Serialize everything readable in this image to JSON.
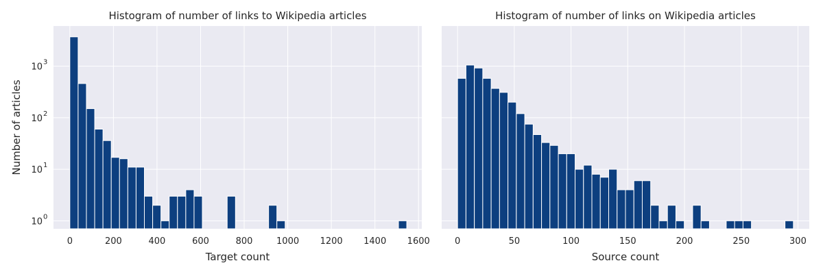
{
  "chart_data": [
    {
      "type": "bar",
      "title": "Histogram of number of links to Wikipedia articles",
      "xlabel": "Target count",
      "ylabel": "Number of articles",
      "yscale": "log",
      "grid": true,
      "xlim": [
        -75,
        1615
      ],
      "ylim": [
        0.7,
        6000
      ],
      "xticks": [
        0,
        200,
        400,
        600,
        800,
        1000,
        1200,
        1400,
        1600
      ],
      "yticks": [
        {
          "exp": "0",
          "value": 1
        },
        {
          "exp": "1",
          "value": 10
        },
        {
          "exp": "2",
          "value": 100
        },
        {
          "exp": "3",
          "value": 1000
        }
      ],
      "bin_width": 38,
      "bins": [
        {
          "x": 0,
          "value": 3700
        },
        {
          "x": 38,
          "value": 460
        },
        {
          "x": 76,
          "value": 150
        },
        {
          "x": 114,
          "value": 60
        },
        {
          "x": 152,
          "value": 36
        },
        {
          "x": 190,
          "value": 17
        },
        {
          "x": 228,
          "value": 16
        },
        {
          "x": 266,
          "value": 11
        },
        {
          "x": 304,
          "value": 11
        },
        {
          "x": 342,
          "value": 3
        },
        {
          "x": 380,
          "value": 2
        },
        {
          "x": 418,
          "value": 1
        },
        {
          "x": 456,
          "value": 3
        },
        {
          "x": 494,
          "value": 3
        },
        {
          "x": 532,
          "value": 4
        },
        {
          "x": 570,
          "value": 3
        },
        {
          "x": 722,
          "value": 3
        },
        {
          "x": 912,
          "value": 2
        },
        {
          "x": 950,
          "value": 1
        },
        {
          "x": 1508,
          "value": 1
        }
      ]
    },
    {
      "type": "bar",
      "title": "Histogram of number of links on Wikipedia articles",
      "xlabel": "Source count",
      "ylabel": "",
      "yscale": "log",
      "grid": true,
      "xlim": [
        -14,
        310
      ],
      "ylim": [
        0.7,
        6000
      ],
      "xticks": [
        0,
        50,
        100,
        150,
        200,
        250,
        300
      ],
      "bin_width": 7.4,
      "bins": [
        {
          "x": 0,
          "value": 580
        },
        {
          "x": 7.4,
          "value": 1050
        },
        {
          "x": 14.8,
          "value": 920
        },
        {
          "x": 22.2,
          "value": 580
        },
        {
          "x": 29.6,
          "value": 370
        },
        {
          "x": 37,
          "value": 310
        },
        {
          "x": 44.4,
          "value": 200
        },
        {
          "x": 51.8,
          "value": 120
        },
        {
          "x": 59.2,
          "value": 75
        },
        {
          "x": 66.6,
          "value": 47
        },
        {
          "x": 74,
          "value": 33
        },
        {
          "x": 81.4,
          "value": 29
        },
        {
          "x": 88.8,
          "value": 20
        },
        {
          "x": 96.2,
          "value": 20
        },
        {
          "x": 103.6,
          "value": 10
        },
        {
          "x": 111,
          "value": 12
        },
        {
          "x": 118.4,
          "value": 8
        },
        {
          "x": 125.8,
          "value": 7
        },
        {
          "x": 133.2,
          "value": 10
        },
        {
          "x": 140.6,
          "value": 4
        },
        {
          "x": 148,
          "value": 4
        },
        {
          "x": 155.4,
          "value": 6
        },
        {
          "x": 162.8,
          "value": 6
        },
        {
          "x": 170.2,
          "value": 2
        },
        {
          "x": 177.6,
          "value": 1
        },
        {
          "x": 185,
          "value": 2
        },
        {
          "x": 192.4,
          "value": 1
        },
        {
          "x": 207.2,
          "value": 2
        },
        {
          "x": 214.6,
          "value": 1
        },
        {
          "x": 236.8,
          "value": 1
        },
        {
          "x": 244.2,
          "value": 1
        },
        {
          "x": 251.6,
          "value": 1
        },
        {
          "x": 288.6,
          "value": 1
        }
      ]
    }
  ],
  "colors": {
    "bar": "#0d3f7f",
    "plot_bg": "#eaeaf2",
    "grid": "#ffffff",
    "text": "#262626"
  }
}
